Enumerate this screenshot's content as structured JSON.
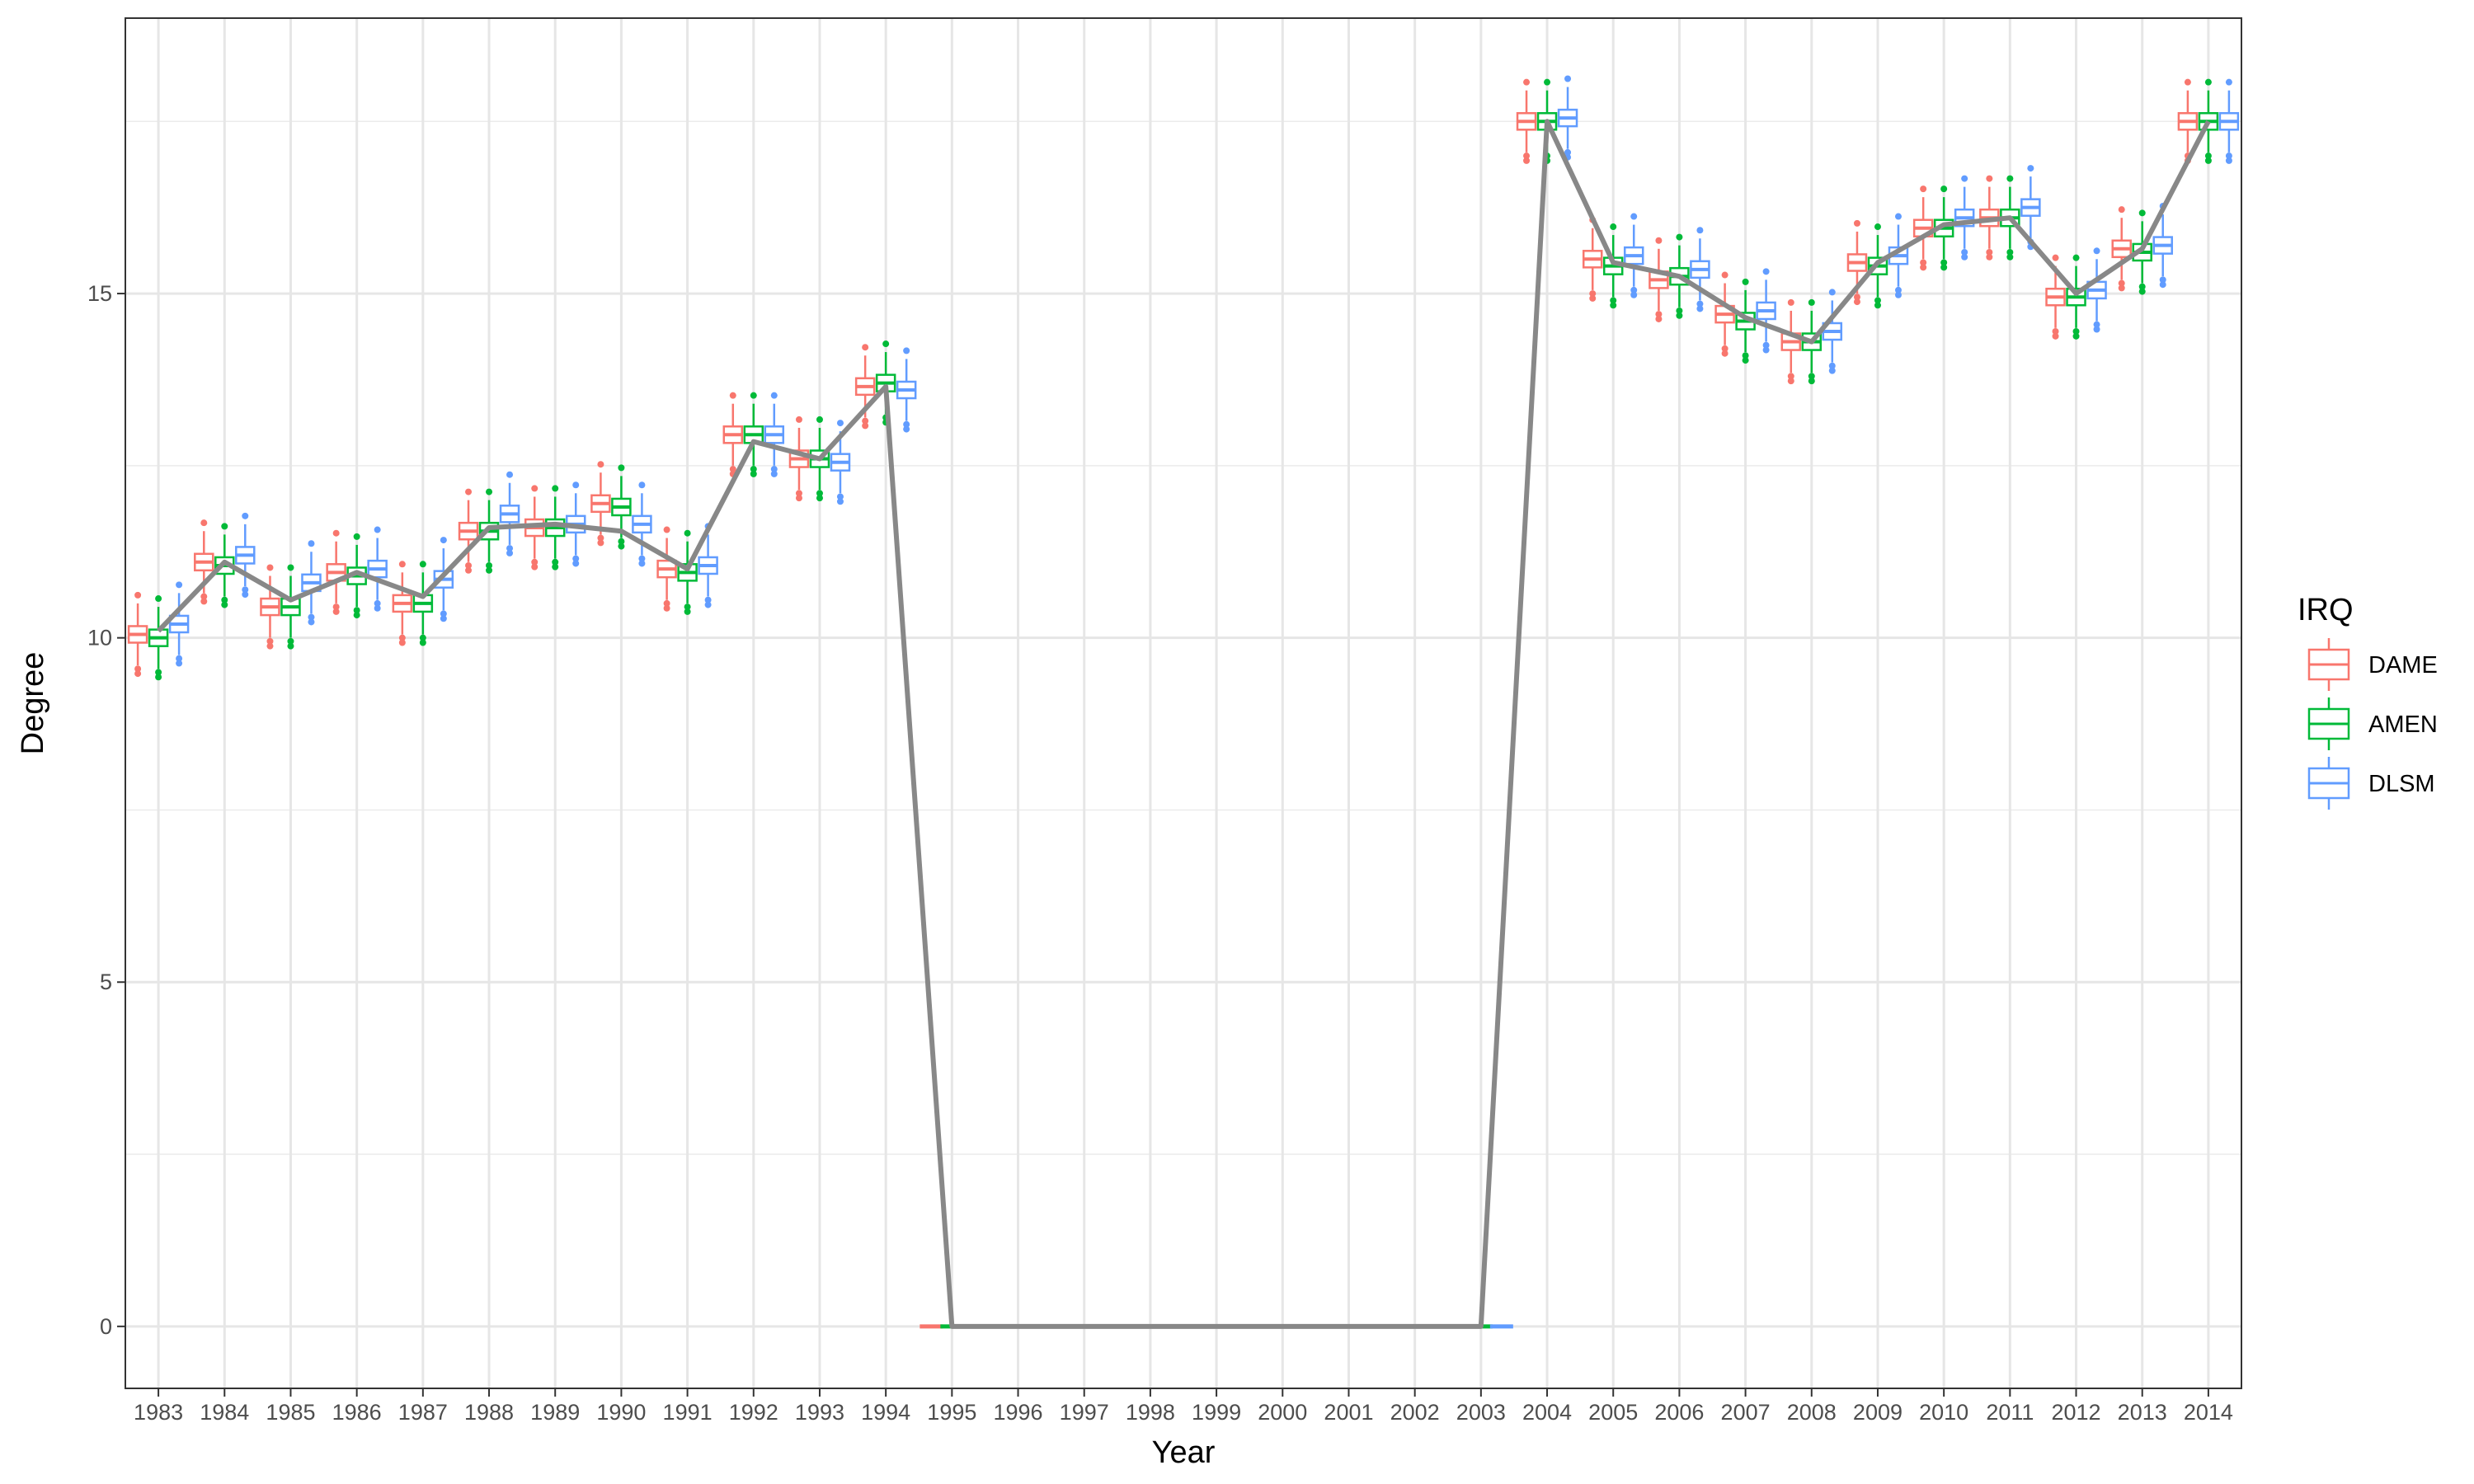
{
  "chart_data": {
    "type": "boxplot",
    "xlabel": "Year",
    "ylabel": "Degree",
    "ylim": [
      -0.9,
      19.0
    ],
    "yticks": [
      0,
      5,
      10,
      15
    ],
    "grid": true,
    "legend": {
      "title": "IRQ",
      "position": "right",
      "entries": [
        "DAME",
        "AMEN",
        "DLSM"
      ]
    },
    "colors": {
      "DAME": "#F8766D",
      "AMEN": "#00BA38",
      "DLSM": "#619CFF",
      "line": "#888888"
    },
    "categories": [
      "1983",
      "1984",
      "1985",
      "1986",
      "1987",
      "1988",
      "1989",
      "1990",
      "1991",
      "1992",
      "1993",
      "1994",
      "1995",
      "1996",
      "1997",
      "1998",
      "1999",
      "2000",
      "2001",
      "2002",
      "2003",
      "2004",
      "2005",
      "2006",
      "2007",
      "2008",
      "2009",
      "2010",
      "2011",
      "2012",
      "2013",
      "2014"
    ],
    "series": [
      {
        "name": "DAME",
        "medians": [
          10.05,
          11.1,
          10.45,
          10.95,
          10.5,
          11.55,
          11.6,
          11.95,
          11.0,
          12.95,
          12.6,
          13.65,
          0,
          0,
          0,
          0,
          0,
          0,
          0,
          0,
          0,
          17.5,
          15.5,
          15.2,
          14.7,
          14.3,
          15.45,
          15.95,
          16.1,
          14.95,
          15.65,
          17.5
        ]
      },
      {
        "name": "AMEN",
        "medians": [
          10.0,
          11.05,
          10.45,
          10.9,
          10.5,
          11.55,
          11.6,
          11.9,
          10.95,
          12.95,
          12.6,
          13.7,
          0,
          0,
          0,
          0,
          0,
          0,
          0,
          0,
          0,
          17.5,
          15.4,
          15.25,
          14.6,
          14.3,
          15.4,
          15.95,
          16.1,
          14.95,
          15.6,
          17.5
        ]
      },
      {
        "name": "DLSM",
        "medians": [
          10.2,
          11.2,
          10.8,
          11.0,
          10.85,
          11.8,
          11.65,
          11.65,
          11.05,
          12.95,
          12.55,
          13.6,
          0,
          0,
          0,
          0,
          0,
          0,
          0,
          0,
          0,
          17.55,
          15.55,
          15.35,
          14.75,
          14.45,
          15.55,
          16.1,
          16.25,
          15.05,
          15.7,
          17.5
        ]
      }
    ],
    "mean_line": [
      10.1,
      11.1,
      10.55,
      10.95,
      10.6,
      11.6,
      11.65,
      11.55,
      11.0,
      12.85,
      12.6,
      13.65,
      0,
      0,
      0,
      0,
      0,
      0,
      0,
      0,
      0,
      17.5,
      15.45,
      15.25,
      14.65,
      14.3,
      15.45,
      16.0,
      16.1,
      15.0,
      15.65,
      17.5
    ]
  }
}
